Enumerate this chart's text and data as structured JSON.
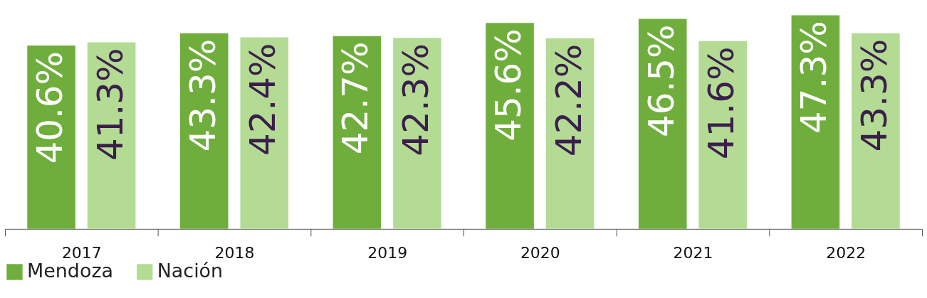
{
  "chart_data": {
    "type": "bar",
    "categories": [
      "2017",
      "2018",
      "2019",
      "2020",
      "2021",
      "2022"
    ],
    "series": [
      {
        "name": "Mendoza",
        "color": "#6fae3c",
        "values": [
          40.6,
          43.3,
          42.7,
          45.6,
          46.5,
          47.3
        ],
        "value_labels": [
          "40.6%",
          "43.3%",
          "42.7%",
          "45.6%",
          "46.5%",
          "47.3%"
        ]
      },
      {
        "name": "Nación",
        "color": "#b3db94",
        "values": [
          41.3,
          42.4,
          42.3,
          42.2,
          41.6,
          43.3
        ],
        "value_labels": [
          "41.3%",
          "42.4%",
          "42.3%",
          "42.2%",
          "41.6%",
          "43.3%"
        ]
      }
    ],
    "legend": "bottom",
    "grid": false,
    "tick_labels": "x"
  }
}
